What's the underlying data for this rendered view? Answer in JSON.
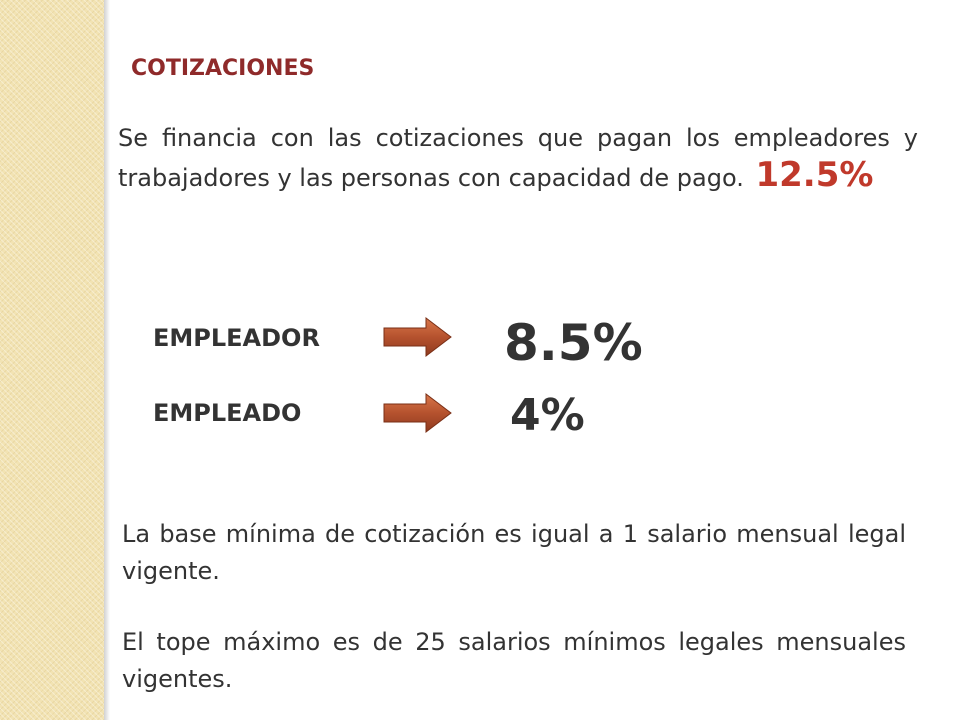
{
  "slide": {
    "title": "COTIZACIONES",
    "intro_text": "Se financia con las cotizaciones que pagan los empleadores y trabajadores   y las personas con capacidad de pago.",
    "intro_rate": "12.5%",
    "rows": [
      {
        "label": "EMPLEADOR",
        "rate": "8.5%"
      },
      {
        "label": "EMPLEADO",
        "rate": "4%"
      }
    ],
    "base_text": "La base mínima de cotización es igual a 1 salario mensual legal vigente.",
    "cap_text": "El tope máximo es de 25 salarios mínimos legales mensuales vigentes."
  },
  "colors": {
    "title": "#8f2a2a",
    "intro_rate": "#c0392b",
    "arrow": "#b5522e",
    "side_strip": "#f2e3b3"
  },
  "icons": [
    "right-arrow-icon",
    "right-arrow-icon"
  ]
}
